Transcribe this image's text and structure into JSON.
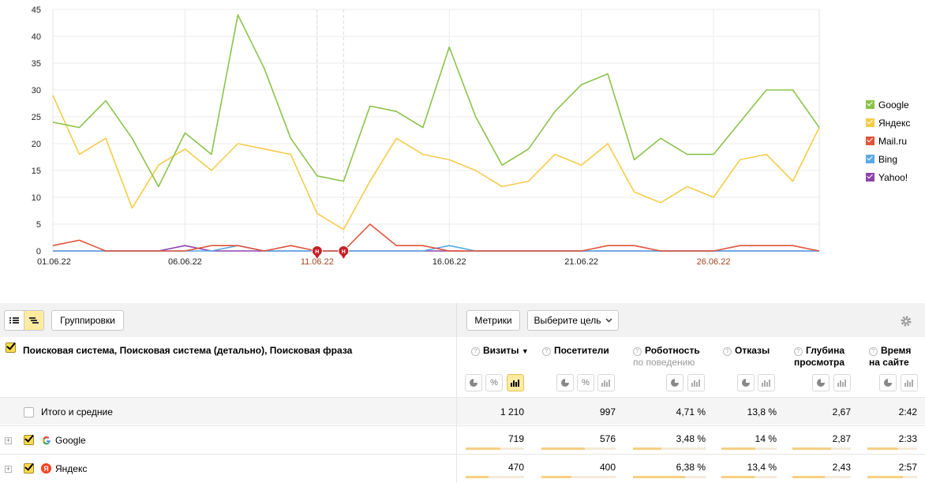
{
  "chart_data": {
    "type": "line",
    "x": [
      "01.06.22",
      "02.06.22",
      "03.06.22",
      "04.06.22",
      "05.06.22",
      "06.06.22",
      "07.06.22",
      "08.06.22",
      "09.06.22",
      "10.06.22",
      "11.06.22",
      "12.06.22",
      "13.06.22",
      "14.06.22",
      "15.06.22",
      "16.06.22",
      "17.06.22",
      "18.06.22",
      "19.06.22",
      "20.06.22",
      "21.06.22",
      "22.06.22",
      "23.06.22",
      "24.06.22",
      "25.06.22",
      "26.06.22",
      "27.06.22",
      "28.06.22",
      "29.06.22",
      "30.06.22"
    ],
    "x_tick_labels": [
      "01.06.22",
      "06.06.22",
      "11.06.22",
      "16.06.22",
      "21.06.22",
      "26.06.22"
    ],
    "x_tick_weekend": [
      false,
      false,
      true,
      false,
      false,
      true
    ],
    "ylim": [
      0,
      45
    ],
    "y_ticks": [
      0,
      5,
      10,
      15,
      20,
      25,
      30,
      35,
      40,
      45
    ],
    "grid": true,
    "legend_position": "right",
    "series": [
      {
        "name": "Google",
        "color": "#8bc34a",
        "values": [
          24,
          23,
          28,
          21,
          12,
          22,
          18,
          44,
          34,
          21,
          14,
          13,
          27,
          26,
          23,
          38,
          25,
          16,
          19,
          26,
          31,
          33,
          17,
          21,
          18,
          18,
          24,
          30,
          30,
          23
        ]
      },
      {
        "name": "Яндекс",
        "color": "#f5cc48",
        "values": [
          29,
          18,
          21,
          8,
          16,
          19,
          15,
          20,
          19,
          18,
          7,
          4,
          13,
          21,
          18,
          17,
          15,
          12,
          13,
          18,
          16,
          20,
          11,
          9,
          12,
          10,
          17,
          18,
          13,
          23
        ]
      },
      {
        "name": "Mail.ru",
        "color": "#e0533b",
        "values": [
          1,
          2,
          0,
          0,
          0,
          0,
          1,
          1,
          0,
          1,
          0,
          0,
          5,
          1,
          1,
          0,
          0,
          0,
          0,
          0,
          0,
          1,
          1,
          0,
          0,
          0,
          1,
          1,
          1,
          0
        ]
      },
      {
        "name": "Bing",
        "color": "#5aa9e6",
        "values": [
          0,
          0,
          0,
          0,
          0,
          0,
          0,
          1,
          0,
          0,
          0,
          0,
          0,
          0,
          0,
          1,
          0,
          0,
          0,
          0,
          0,
          0,
          0,
          0,
          0,
          0,
          0,
          0,
          0,
          0
        ]
      },
      {
        "name": "Yahoo!",
        "color": "#8e44ad",
        "values": [
          0,
          0,
          0,
          0,
          0,
          1,
          0,
          0,
          0,
          0,
          0,
          0,
          0,
          0,
          0,
          0,
          0,
          0,
          0,
          0,
          0,
          0,
          0,
          0,
          0,
          0,
          0,
          0,
          0,
          0
        ]
      }
    ],
    "annotations": [
      {
        "x": "11.06.22",
        "label": "H"
      },
      {
        "x": "12.06.22",
        "label": "H"
      }
    ]
  },
  "toolbar": {
    "groupings_label": "Группировки",
    "metrics_label": "Метрики",
    "goal_label": "Выберите цель"
  },
  "table": {
    "dimension_title": "Поисковая система, Поисковая система (детально), Поисковая фраза",
    "columns": [
      {
        "label": "Визиты",
        "sort": "▼"
      },
      {
        "label": "Посетители"
      },
      {
        "label": "Роботность",
        "sub": "по поведению"
      },
      {
        "label": "Отказы"
      },
      {
        "label": "Глубина",
        "sub": "просмотра"
      },
      {
        "label": "Время",
        "sub": "на сайте"
      }
    ],
    "total": {
      "label": "Итого и средние",
      "values": [
        "1 210",
        "997",
        "4,71 %",
        "13,8 %",
        "2,67",
        "2:42"
      ]
    },
    "rows": [
      {
        "label": "Google",
        "icon": "google-icon",
        "values": [
          "719",
          "576",
          "3,48 %",
          "14 %",
          "2,87",
          "2:33"
        ],
        "fractions": [
          0.59,
          0.58,
          0.39,
          0.62,
          0.66,
          0.62
        ]
      },
      {
        "label": "Яндекс",
        "icon": "yandex-icon",
        "values": [
          "470",
          "400",
          "6,38 %",
          "13,4 %",
          "2,43",
          "2:57"
        ],
        "fractions": [
          0.39,
          0.4,
          0.72,
          0.6,
          0.56,
          0.72
        ]
      }
    ]
  }
}
